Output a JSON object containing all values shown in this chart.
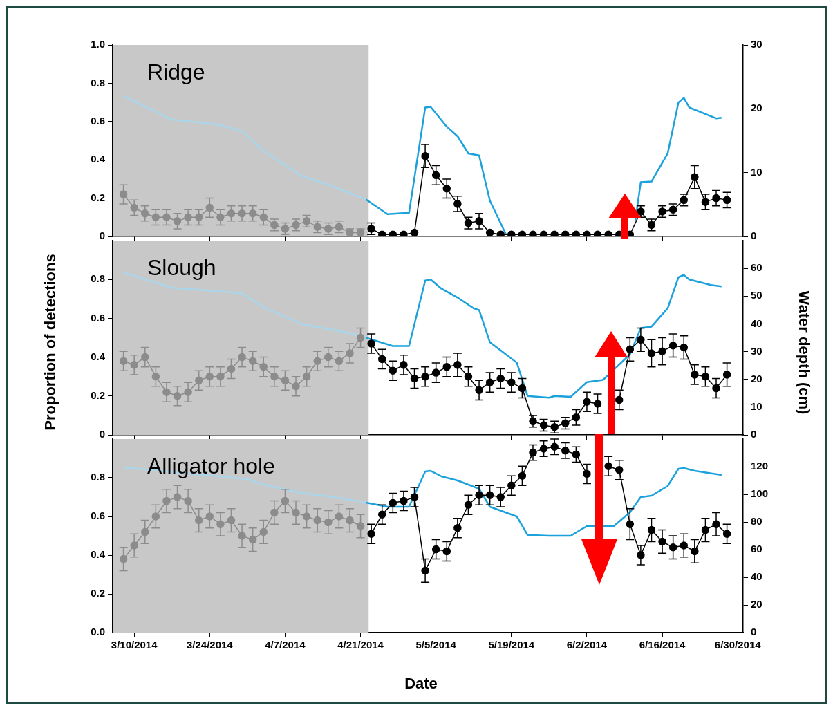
{
  "chart_data": [
    {
      "type": "line",
      "title": "Ridge",
      "xlim": [
        "2014-03-06",
        "2014-07-01"
      ],
      "ylim": [
        0,
        1
      ],
      "y2lim": [
        0,
        30
      ],
      "xticks": [
        {
          "value": "2014-03-10",
          "label": null
        },
        {
          "value": "2014-03-24",
          "label": null
        },
        {
          "value": "2014-04-07",
          "label": null
        },
        {
          "value": "2014-04-21",
          "label": null
        },
        {
          "value": "2014-05-05",
          "label": null
        },
        {
          "value": "2014-05-19",
          "label": null
        },
        {
          "value": "2014-06-02",
          "label": null
        },
        {
          "value": "2014-06-16",
          "label": null
        },
        {
          "value": "2014-06-30",
          "label": null
        }
      ],
      "yticks": [
        0,
        0.2,
        0.4,
        0.6,
        0.8,
        {
          "value": 1,
          "label": "1.0"
        }
      ],
      "y2ticks": [
        0,
        10,
        20,
        30
      ],
      "tick_labels": "y",
      "bands": [
        {
          "axis": "x",
          "from": "2014-03-06",
          "to": "2014-04-22T12:00",
          "color": "#c8c8c8"
        }
      ],
      "series": [
        {
          "color": "#8c8c8c",
          "marker": "circle",
          "x": [
            "2014-03-08",
            "2014-03-10",
            "2014-03-12",
            "2014-03-14",
            "2014-03-16",
            "2014-03-18",
            "2014-03-20",
            "2014-03-22",
            "2014-03-24",
            "2014-03-26",
            "2014-03-28",
            "2014-03-30",
            "2014-04-01",
            "2014-04-03",
            "2014-04-05",
            "2014-04-07",
            "2014-04-09",
            "2014-04-11",
            "2014-04-13",
            "2014-04-15",
            "2014-04-17",
            "2014-04-19",
            "2014-04-21"
          ],
          "values": [
            0.22,
            0.15,
            0.12,
            0.1,
            0.1,
            0.08,
            0.1,
            0.1,
            0.15,
            0.1,
            0.12,
            0.12,
            0.12,
            0.1,
            0.06,
            0.04,
            0.06,
            0.08,
            0.05,
            0.04,
            0.05,
            0.02,
            0.02
          ],
          "errors": [
            0.05,
            0.04,
            0.04,
            0.04,
            0.04,
            0.04,
            0.04,
            0.04,
            0.05,
            0.04,
            0.04,
            0.04,
            0.04,
            0.04,
            0.03,
            0.03,
            0.03,
            0.03,
            0.03,
            0.03,
            0.03,
            0.02,
            0.02
          ]
        },
        {
          "color": "#000000",
          "marker": "circle",
          "x": [
            "2014-04-23",
            "2014-04-25",
            "2014-04-27",
            "2014-04-29",
            "2014-05-01",
            "2014-05-03",
            "2014-05-05",
            "2014-05-07",
            "2014-05-09",
            "2014-05-11",
            "2014-05-13",
            "2014-05-15",
            "2014-05-17",
            "2014-05-19",
            "2014-05-21",
            "2014-05-23",
            "2014-05-25",
            "2014-05-27",
            "2014-05-29",
            "2014-05-31",
            "2014-06-02",
            "2014-06-04",
            "2014-06-06",
            "2014-06-08",
            "2014-06-10",
            "2014-06-12",
            "2014-06-14",
            "2014-06-16",
            "2014-06-18",
            "2014-06-20",
            "2014-06-22",
            "2014-06-24",
            "2014-06-26",
            "2014-06-28"
          ],
          "values": [
            0.04,
            0.01,
            0.01,
            0.01,
            0.02,
            0.42,
            0.32,
            0.25,
            0.17,
            0.07,
            0.08,
            0.02,
            0.01,
            0.01,
            0.01,
            0.01,
            0.01,
            0.01,
            0.01,
            0.01,
            0.01,
            0.01,
            0.01,
            0.01,
            0.01,
            0.13,
            0.06,
            0.13,
            0.14,
            0.19,
            0.31,
            0.18,
            0.2,
            0.19
          ],
          "errors": [
            0.03,
            null,
            null,
            null,
            null,
            0.06,
            0.05,
            0.05,
            0.04,
            0.03,
            0.04,
            null,
            null,
            null,
            null,
            null,
            null,
            null,
            null,
            null,
            null,
            null,
            null,
            null,
            null,
            0.03,
            0.03,
            0.03,
            0.03,
            0.03,
            0.06,
            0.04,
            0.04,
            0.04
          ]
        },
        {
          "color": "#a9d6ea",
          "marker": "none",
          "axis": "y2",
          "x": [
            "2014-03-08",
            "2014-03-17",
            "2014-03-25",
            "2014-03-30",
            "2014-04-03",
            "2014-04-10",
            "2014-04-16",
            "2014-04-22"
          ],
          "values": [
            22,
            18.3,
            17.6,
            16.5,
            13.4,
            9.5,
            7.8,
            5.8
          ]
        },
        {
          "color": "#1ba1db",
          "marker": "none",
          "axis": "y2",
          "x": [
            "2014-04-22",
            "2014-04-26",
            "2014-04-30",
            "2014-05-03",
            "2014-05-04",
            "2014-05-07",
            "2014-05-09",
            "2014-05-11",
            "2014-05-13",
            "2014-05-15",
            "2014-05-18",
            "2014-05-30",
            "2014-06-11",
            "2014-06-12",
            "2014-06-14",
            "2014-06-17",
            "2014-06-19",
            "2014-06-20",
            "2014-06-21",
            "2014-06-26",
            "2014-06-27"
          ],
          "values": [
            5.8,
            3.5,
            3.7,
            20.2,
            20.3,
            17.2,
            15.7,
            13,
            12.7,
            5.6,
            0.3,
            null,
            2.5,
            8.5,
            8.6,
            13,
            21,
            21.7,
            20.2,
            18.5,
            18.6
          ]
        }
      ]
    },
    {
      "type": "line",
      "title": "Slough",
      "ylabel": "Proportion of detections",
      "y2label": "Water depth (cm)",
      "xlim": [
        "2014-03-06",
        "2014-07-01"
      ],
      "ylim": [
        0,
        1
      ],
      "y2lim": [
        0,
        70
      ],
      "xticks": [
        {
          "value": "2014-03-10",
          "label": null
        },
        {
          "value": "2014-03-24",
          "label": null
        },
        {
          "value": "2014-04-07",
          "label": null
        },
        {
          "value": "2014-04-21",
          "label": null
        },
        {
          "value": "2014-05-05",
          "label": null
        },
        {
          "value": "2014-05-19",
          "label": null
        },
        {
          "value": "2014-06-02",
          "label": null
        },
        {
          "value": "2014-06-16",
          "label": null
        },
        {
          "value": "2014-06-30",
          "label": null
        }
      ],
      "yticks": [
        0,
        0.2,
        0.4,
        0.6,
        0.8
      ],
      "y2ticks": [
        0,
        10,
        20,
        30,
        40,
        50,
        60
      ],
      "tick_labels": "y",
      "bands": [
        {
          "axis": "x",
          "from": "2014-03-06",
          "to": "2014-04-22T12:00",
          "color": "#c8c8c8"
        }
      ],
      "series": [
        {
          "color": "#8c8c8c",
          "marker": "circle",
          "x": [
            "2014-03-08",
            "2014-03-10",
            "2014-03-12",
            "2014-03-14",
            "2014-03-16",
            "2014-03-18",
            "2014-03-20",
            "2014-03-22",
            "2014-03-24",
            "2014-03-26",
            "2014-03-28",
            "2014-03-30",
            "2014-04-01",
            "2014-04-03",
            "2014-04-05",
            "2014-04-07",
            "2014-04-09",
            "2014-04-11",
            "2014-04-13",
            "2014-04-15",
            "2014-04-17",
            "2014-04-19",
            "2014-04-21"
          ],
          "values": [
            0.38,
            0.36,
            0.4,
            0.3,
            0.22,
            0.2,
            0.22,
            0.28,
            0.3,
            0.3,
            0.34,
            0.4,
            0.38,
            0.35,
            0.3,
            0.28,
            0.25,
            0.3,
            0.38,
            0.4,
            0.38,
            0.42,
            0.5
          ],
          "errors": [
            0.05,
            0.05,
            0.05,
            0.05,
            0.05,
            0.05,
            0.05,
            0.05,
            0.05,
            0.05,
            0.05,
            0.05,
            0.05,
            0.05,
            0.05,
            0.05,
            0.05,
            0.05,
            0.05,
            0.05,
            0.05,
            0.05,
            0.05
          ]
        },
        {
          "color": "#000000",
          "marker": "circle",
          "x": [
            "2014-04-23",
            "2014-04-25",
            "2014-04-27",
            "2014-04-29",
            "2014-05-01",
            "2014-05-03",
            "2014-05-05",
            "2014-05-07",
            "2014-05-09",
            "2014-05-11",
            "2014-05-13",
            "2014-05-15",
            "2014-05-17",
            "2014-05-19",
            "2014-05-21",
            "2014-05-23",
            "2014-05-25",
            "2014-05-27",
            "2014-05-29",
            "2014-05-31",
            "2014-06-02",
            "2014-06-04",
            "2014-06-06",
            "2014-06-08",
            "2014-06-10",
            "2014-06-12",
            "2014-06-14",
            "2014-06-16",
            "2014-06-18",
            "2014-06-20",
            "2014-06-22",
            "2014-06-24",
            "2014-06-26",
            "2014-06-28"
          ],
          "values": [
            0.47,
            0.39,
            0.33,
            0.36,
            0.29,
            0.3,
            0.32,
            0.35,
            0.36,
            0.3,
            0.23,
            0.27,
            0.29,
            0.27,
            0.24,
            0.07,
            0.05,
            0.04,
            0.06,
            0.09,
            0.17,
            0.16,
            null,
            0.18,
            0.44,
            0.49,
            0.42,
            0.43,
            0.46,
            0.45,
            0.31,
            0.3,
            0.24,
            0.31
          ],
          "errors": [
            0.05,
            0.05,
            0.05,
            0.05,
            0.05,
            0.05,
            0.05,
            0.05,
            0.06,
            0.05,
            0.05,
            0.05,
            0.05,
            0.05,
            0.05,
            0.03,
            0.03,
            0.03,
            0.03,
            0.04,
            0.05,
            0.05,
            null,
            0.05,
            0.06,
            0.06,
            0.07,
            0.07,
            0.06,
            0.06,
            0.05,
            0.05,
            0.05,
            0.06
          ]
        },
        {
          "color": "#a9d6ea",
          "marker": "none",
          "axis": "y2",
          "x": [
            "2014-03-08",
            "2014-03-17",
            "2014-03-24",
            "2014-03-30",
            "2014-04-03",
            "2014-04-10",
            "2014-04-16",
            "2014-04-22"
          ],
          "values": [
            58.5,
            53,
            52,
            51,
            46,
            40,
            37.8,
            35.4
          ]
        },
        {
          "color": "#1ba1db",
          "marker": "none",
          "axis": "y2",
          "x": [
            "2014-04-22",
            "2014-04-27",
            "2014-04-30",
            "2014-05-03",
            "2014-05-04",
            "2014-05-06",
            "2014-05-09",
            "2014-05-12",
            "2014-05-13",
            "2014-05-15",
            "2014-05-20",
            "2014-05-22",
            "2014-05-26",
            "2014-05-27",
            "2014-05-30",
            "2014-06-02",
            "2014-06-05",
            "2014-06-10",
            "2014-06-12",
            "2014-06-14",
            "2014-06-17",
            "2014-06-19",
            "2014-06-20",
            "2014-06-21",
            "2014-06-25",
            "2014-06-27"
          ],
          "values": [
            35,
            32,
            32,
            55.6,
            56,
            52.7,
            49.5,
            45.6,
            45,
            33.4,
            26,
            14,
            13.4,
            14,
            13.7,
            19,
            19.8,
            29,
            38.5,
            39,
            45.6,
            56.8,
            57.6,
            56,
            54,
            53.5
          ]
        }
      ]
    },
    {
      "type": "line",
      "title": "Alligator hole",
      "xlabel": "Date",
      "xlim": [
        "2014-03-06",
        "2014-07-01"
      ],
      "ylim": [
        0,
        1
      ],
      "y2lim": [
        0,
        140
      ],
      "xticks": [
        {
          "value": "2014-03-10",
          "label": "3/10/2014"
        },
        {
          "value": "2014-03-24",
          "label": "3/24/2014"
        },
        {
          "value": "2014-04-07",
          "label": "4/7/2014"
        },
        {
          "value": "2014-04-21",
          "label": "4/21/2014"
        },
        {
          "value": "2014-05-05",
          "label": "5/5/2014"
        },
        {
          "value": "2014-05-19",
          "label": "5/19/2014"
        },
        {
          "value": "2014-06-02",
          "label": "6/2/2014"
        },
        {
          "value": "2014-06-16",
          "label": "6/16/2014"
        },
        {
          "value": "2014-06-30",
          "label": "6/30/2014"
        }
      ],
      "yticks": [
        {
          "value": 0,
          "label": "0.0"
        },
        0.2,
        0.4,
        0.6,
        0.8
      ],
      "y2ticks": [
        0,
        20,
        40,
        60,
        80,
        100,
        120
      ],
      "bands": [
        {
          "axis": "x",
          "from": "2014-03-06",
          "to": "2014-04-22T12:00",
          "color": "#c8c8c8"
        }
      ],
      "series": [
        {
          "color": "#8c8c8c",
          "marker": "circle",
          "x": [
            "2014-03-08",
            "2014-03-10",
            "2014-03-12",
            "2014-03-14",
            "2014-03-16",
            "2014-03-18",
            "2014-03-20",
            "2014-03-22",
            "2014-03-24",
            "2014-03-26",
            "2014-03-28",
            "2014-03-30",
            "2014-04-01",
            "2014-04-03",
            "2014-04-05",
            "2014-04-07",
            "2014-04-09",
            "2014-04-11",
            "2014-04-13",
            "2014-04-15",
            "2014-04-17",
            "2014-04-19",
            "2014-04-21"
          ],
          "values": [
            0.38,
            0.45,
            0.52,
            0.6,
            0.68,
            0.7,
            0.68,
            0.58,
            0.6,
            0.56,
            0.58,
            0.5,
            0.48,
            0.52,
            0.62,
            0.68,
            0.62,
            0.6,
            0.58,
            0.57,
            0.6,
            0.58,
            0.55
          ],
          "errors": [
            0.06,
            0.06,
            0.06,
            0.06,
            0.06,
            0.06,
            0.06,
            0.06,
            0.06,
            0.06,
            0.06,
            0.06,
            0.06,
            0.06,
            0.06,
            0.06,
            0.06,
            0.06,
            0.06,
            0.06,
            0.06,
            0.06,
            0.06
          ]
        },
        {
          "color": "#000000",
          "marker": "circle",
          "x": [
            "2014-04-23",
            "2014-04-25",
            "2014-04-27",
            "2014-04-29",
            "2014-05-01",
            "2014-05-03",
            "2014-05-05",
            "2014-05-07",
            "2014-05-09",
            "2014-05-11",
            "2014-05-13",
            "2014-05-15",
            "2014-05-17",
            "2014-05-19",
            "2014-05-21",
            "2014-05-23",
            "2014-05-25",
            "2014-05-27",
            "2014-05-29",
            "2014-05-31",
            "2014-06-02",
            "2014-06-04",
            "2014-06-06",
            "2014-06-08",
            "2014-06-10",
            "2014-06-12",
            "2014-06-14",
            "2014-06-16",
            "2014-06-18",
            "2014-06-20",
            "2014-06-22",
            "2014-06-24",
            "2014-06-26",
            "2014-06-28"
          ],
          "values": [
            0.51,
            0.61,
            0.67,
            0.68,
            0.7,
            0.32,
            0.43,
            0.42,
            0.54,
            0.66,
            0.71,
            0.71,
            0.7,
            0.76,
            0.81,
            0.93,
            0.95,
            0.96,
            0.94,
            0.92,
            0.82,
            null,
            0.86,
            0.84,
            0.56,
            0.4,
            0.53,
            0.47,
            0.44,
            0.45,
            0.42,
            0.53,
            0.56,
            0.51
          ],
          "errors": [
            0.05,
            0.05,
            0.05,
            0.05,
            0.05,
            0.06,
            0.05,
            0.05,
            0.05,
            0.05,
            0.05,
            0.05,
            0.05,
            0.05,
            0.05,
            0.04,
            0.04,
            0.04,
            0.04,
            0.04,
            0.05,
            null,
            0.05,
            0.05,
            0.08,
            0.05,
            0.06,
            0.06,
            0.06,
            0.06,
            0.06,
            0.06,
            0.06,
            0.05
          ]
        },
        {
          "color": "#a9d6ea",
          "marker": "none",
          "axis": "y2",
          "x": [
            "2014-03-08",
            "2014-03-24",
            "2014-03-31",
            "2014-04-03",
            "2014-04-10",
            "2014-04-16",
            "2014-04-22"
          ],
          "values": [
            119.5,
            113.6,
            111,
            107,
            101,
            98,
            94
          ]
        },
        {
          "color": "#1ba1db",
          "marker": "none",
          "axis": "y2",
          "x": [
            "2014-04-22",
            "2014-04-26",
            "2014-04-30",
            "2014-05-03",
            "2014-05-04",
            "2014-05-06",
            "2014-05-09",
            "2014-05-13",
            "2014-05-15",
            "2014-05-20",
            "2014-05-22",
            "2014-05-26",
            "2014-05-30",
            "2014-06-02",
            "2014-06-07",
            "2014-06-10",
            "2014-06-12",
            "2014-06-14",
            "2014-06-17",
            "2014-06-19",
            "2014-06-20",
            "2014-06-22",
            "2014-06-27"
          ],
          "values": [
            94,
            91,
            91,
            116.5,
            117,
            113,
            110,
            104,
            91,
            84,
            70.6,
            70,
            70,
            77,
            77,
            87,
            98,
            99,
            106,
            118.5,
            119,
            117,
            114
          ]
        }
      ]
    }
  ]
}
